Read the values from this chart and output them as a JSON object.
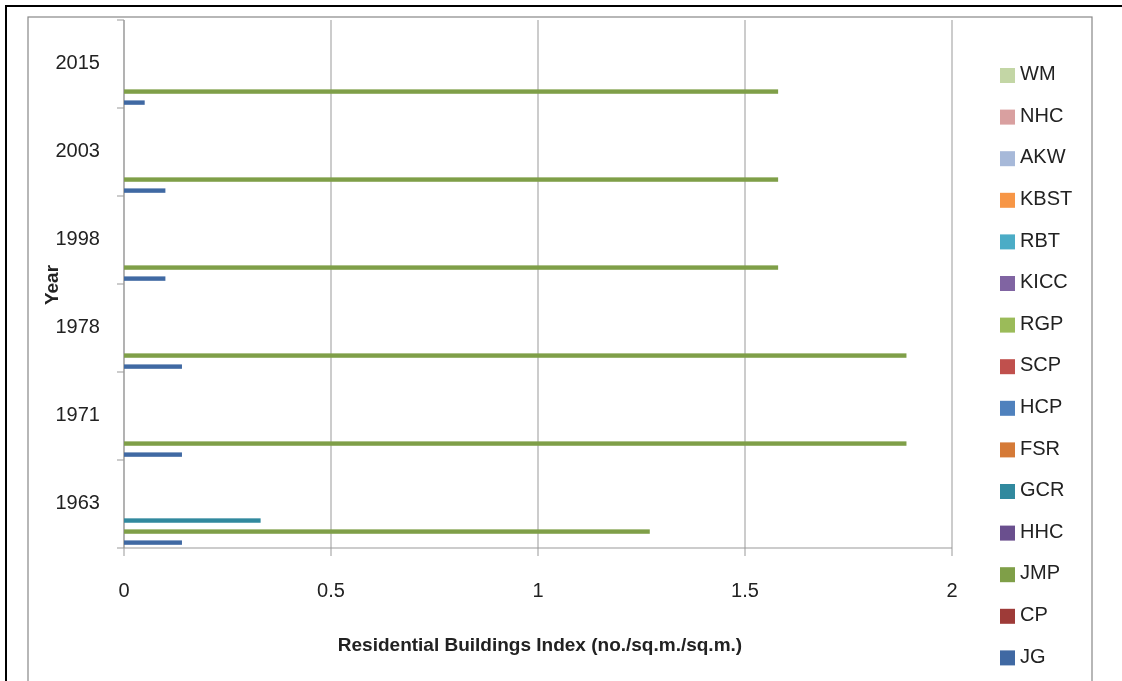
{
  "chart_data": {
    "type": "bar",
    "orientation": "horizontal",
    "xlabel": "Residential Buildings Index (no./sq.m./sq.m.)",
    "ylabel": "Year",
    "categories": [
      "2015",
      "2003",
      "1998",
      "1978",
      "1971",
      "1963"
    ],
    "xlim": [
      0,
      2
    ],
    "xticks": [
      0,
      0.5,
      1,
      1.5,
      2
    ],
    "grid": "x",
    "legend": "right",
    "series": [
      {
        "name": "JG",
        "color": "#4069a3",
        "values": [
          0.05,
          0.1,
          0.1,
          0.14,
          0.14,
          0.14
        ]
      },
      {
        "name": "CP",
        "color": "#9e3b38",
        "values": [
          null,
          null,
          null,
          null,
          null,
          null
        ]
      },
      {
        "name": "JMP",
        "color": "#7f9f48",
        "values": [
          1.58,
          1.58,
          1.58,
          1.89,
          1.89,
          1.27
        ]
      },
      {
        "name": "HHC",
        "color": "#6a4f8e",
        "values": [
          null,
          null,
          null,
          null,
          null,
          null
        ]
      },
      {
        "name": "GCR",
        "color": "#31899e",
        "values": [
          null,
          null,
          null,
          null,
          null,
          0.33
        ]
      },
      {
        "name": "FSR",
        "color": "#d57a37",
        "values": [
          null,
          null,
          null,
          null,
          null,
          null
        ]
      },
      {
        "name": "HCP",
        "color": "#4f81bd",
        "values": [
          null,
          null,
          null,
          null,
          null,
          null
        ]
      },
      {
        "name": "SCP",
        "color": "#c0504d",
        "values": [
          null,
          null,
          null,
          null,
          null,
          null
        ]
      },
      {
        "name": "RGP",
        "color": "#9bbb59",
        "values": [
          null,
          null,
          null,
          null,
          null,
          null
        ]
      },
      {
        "name": "KICC",
        "color": "#8064a2",
        "values": [
          null,
          null,
          null,
          null,
          null,
          null
        ]
      },
      {
        "name": "RBT",
        "color": "#4bacc6",
        "values": [
          null,
          null,
          null,
          null,
          null,
          null
        ]
      },
      {
        "name": "KBST",
        "color": "#f79646",
        "values": [
          null,
          null,
          null,
          null,
          null,
          null
        ]
      },
      {
        "name": "AKW",
        "color": "#a7b9d9",
        "values": [
          null,
          null,
          null,
          null,
          null,
          null
        ]
      },
      {
        "name": "NHC",
        "color": "#d9a0a0",
        "values": [
          null,
          null,
          null,
          null,
          null,
          null
        ]
      },
      {
        "name": "WM",
        "color": "#c3d6a5",
        "values": [
          null,
          null,
          null,
          null,
          null,
          null
        ]
      }
    ]
  }
}
